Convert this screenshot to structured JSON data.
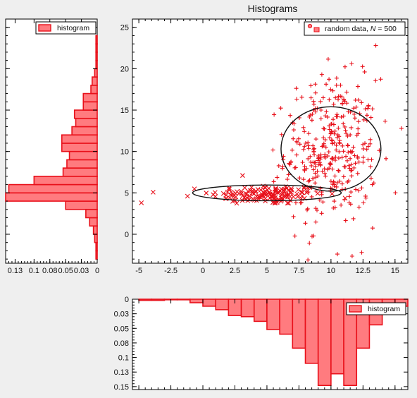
{
  "chart_data": [
    {
      "type": "scatter",
      "title": "Histograms",
      "legend": {
        "label": "random data,",
        "n_label": "N",
        "n_value": "= 500",
        "placement": "top-right"
      },
      "xlim": [
        -5.5,
        16
      ],
      "ylim": [
        -3.5,
        26
      ],
      "xticks": [
        "-5",
        "-2.5",
        "0",
        "2.5",
        "5",
        "7.5",
        "10",
        "12.5",
        "15"
      ],
      "xtick_values": [
        -5,
        -2.5,
        0,
        2.5,
        5,
        7.5,
        10,
        12.5,
        15
      ],
      "yticks": [
        "0",
        "5",
        "10",
        "15",
        "20",
        "25"
      ],
      "ytick_values": [
        0,
        5,
        10,
        15,
        20,
        25
      ],
      "series": [
        {
          "marker": "x",
          "color": "#e8101a",
          "count": 150,
          "center": [
            5,
            4.8
          ],
          "spread": [
            2.2,
            0.6
          ],
          "notable_points": [
            [
              -4.8,
              3.8
            ],
            [
              -1.2,
              4.6
            ],
            [
              3.1,
              7.1
            ]
          ]
        },
        {
          "marker": "+",
          "color": "#e8101a",
          "count": 350,
          "center": [
            10,
            10
          ],
          "spread": [
            1.8,
            4.4
          ],
          "notable_points": [
            [
              13.5,
              22.8
            ],
            [
              11.3,
              24.5
            ],
            [
              8.2,
              -3.1
            ],
            [
              10.5,
              -2.4
            ],
            [
              15.5,
              12.8
            ],
            [
              12.4,
              -2.2
            ]
          ]
        }
      ],
      "ellipses": [
        {
          "center": [
            5,
            5
          ],
          "semi_axes": [
            5.8,
            0.95
          ],
          "color": "#111111"
        },
        {
          "center": [
            10,
            10.3
          ],
          "semi_axes": [
            3.9,
            5.1
          ],
          "color": "#111111"
        }
      ]
    },
    {
      "type": "bar",
      "orientation": "horizontal",
      "legend": {
        "label": "histogram",
        "placement": "top"
      },
      "xlim": [
        0,
        0.145
      ],
      "x_reversed": true,
      "xticks": [
        "0.13",
        "0.1",
        "0.08",
        "0.05",
        "0.03",
        "0"
      ],
      "xtick_values": [
        0.13,
        0.1,
        0.075,
        0.05,
        0.025,
        0
      ],
      "bin_width": 1,
      "bin_starts": [
        -3,
        -2,
        -1,
        0,
        1,
        2,
        3,
        4,
        5,
        6,
        7,
        8,
        9,
        10,
        11,
        12,
        13,
        14,
        15,
        16,
        17,
        18,
        19,
        20,
        21,
        22,
        23
      ],
      "values": [
        0.002,
        0.002,
        0.004,
        0.006,
        0.012,
        0.018,
        0.05,
        0.145,
        0.14,
        0.1,
        0.054,
        0.048,
        0.044,
        0.056,
        0.056,
        0.04,
        0.034,
        0.036,
        0.022,
        0.022,
        0.01,
        0.008,
        0.004,
        0.002,
        0.002,
        0.002,
        0.002
      ],
      "fill": "#ff7b7f",
      "stroke": "#e8101a"
    },
    {
      "type": "bar",
      "orientation": "vertical",
      "legend": {
        "label": "histogram",
        "placement": "top-right"
      },
      "ylim": [
        0,
        0.155
      ],
      "y_reversed": true,
      "yticks": [
        "0",
        "0.03",
        "0.05",
        "0.08",
        "0.1",
        "0.13",
        "0.15"
      ],
      "ytick_values": [
        0,
        0.025,
        0.05,
        0.075,
        0.1,
        0.125,
        0.15
      ],
      "bin_width": 1,
      "bin_starts": [
        -5,
        -4,
        -3,
        -2,
        -1,
        0,
        1,
        2,
        3,
        4,
        5,
        6,
        7,
        8,
        9,
        10,
        11,
        12,
        13,
        14,
        15
      ],
      "values": [
        0.002,
        0.002,
        0.001,
        0.001,
        0.006,
        0.012,
        0.018,
        0.028,
        0.03,
        0.038,
        0.052,
        0.06,
        0.084,
        0.11,
        0.148,
        0.128,
        0.148,
        0.084,
        0.044,
        0.024,
        0.012
      ],
      "fill": "#ff7b7f",
      "stroke": "#e8101a"
    }
  ]
}
